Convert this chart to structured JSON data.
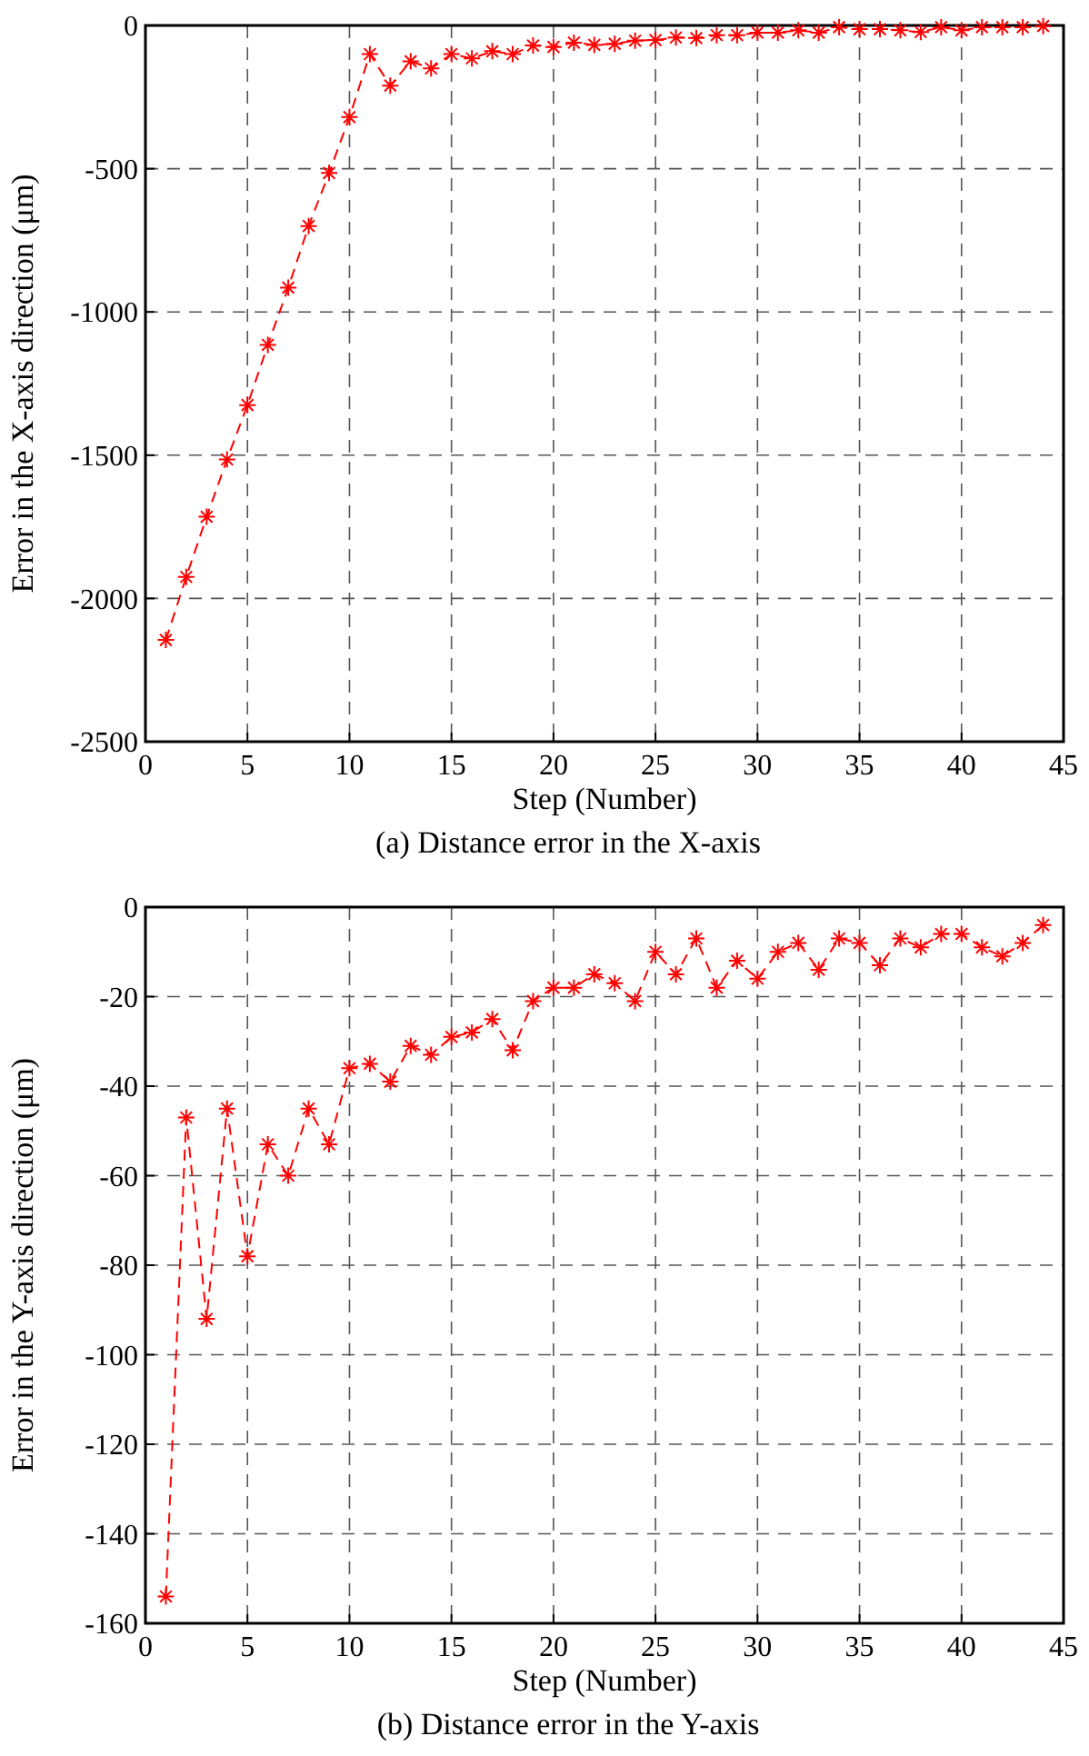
{
  "chart_data": [
    {
      "type": "line",
      "title": "(a) Distance error in the X-axis",
      "xlabel": "Step (Number)",
      "ylabel": "Error in the X-axis direction (μm)",
      "x": [
        1,
        2,
        3,
        4,
        5,
        6,
        7,
        8,
        9,
        10,
        11,
        12,
        13,
        14,
        15,
        16,
        17,
        18,
        19,
        20,
        21,
        22,
        23,
        24,
        25,
        26,
        27,
        28,
        29,
        30,
        31,
        32,
        33,
        34,
        35,
        36,
        37,
        38,
        39,
        40,
        41,
        42,
        43,
        44
      ],
      "series": [
        {
          "color": "#ff0000",
          "values": [
            -2145,
            -1925,
            -1715,
            -1515,
            -1325,
            -1115,
            -915,
            -700,
            -515,
            -320,
            -100,
            -210,
            -125,
            -150,
            -100,
            -115,
            -90,
            -100,
            -70,
            -75,
            -60,
            -68,
            -64,
            -53,
            -51,
            -42,
            -44,
            -34,
            -34,
            -25,
            -25,
            -17,
            -25,
            -6,
            -13,
            -13,
            -17,
            -23,
            -6,
            -17,
            -6,
            -6,
            -6,
            -2
          ]
        }
      ],
      "xlim": [
        0,
        45
      ],
      "xticks": [
        0,
        5,
        10,
        15,
        20,
        25,
        30,
        35,
        40,
        45
      ],
      "ylim": [
        -2500,
        0
      ],
      "yticks": [
        -2500,
        -2000,
        -1500,
        -1000,
        -500,
        0
      ],
      "grid": true,
      "marker": "cross",
      "line_style": "dashed"
    },
    {
      "type": "line",
      "title": "(b) Distance error in the Y-axis",
      "xlabel": "Step (Number)",
      "ylabel": "Error in the Y-axis direction (μm)",
      "x": [
        1,
        2,
        3,
        4,
        5,
        6,
        7,
        8,
        9,
        10,
        11,
        12,
        13,
        14,
        15,
        16,
        17,
        18,
        19,
        20,
        21,
        22,
        23,
        24,
        25,
        26,
        27,
        28,
        29,
        30,
        31,
        32,
        33,
        34,
        35,
        36,
        37,
        38,
        39,
        40,
        41,
        42,
        43,
        44
      ],
      "series": [
        {
          "color": "#ff0000",
          "values": [
            -154,
            -47,
            -92,
            -45,
            -78,
            -53,
            -60,
            -45,
            -53,
            -36,
            -35,
            -39,
            -31,
            -33,
            -29,
            -28,
            -25,
            -32,
            -21,
            -18,
            -18,
            -15,
            -17,
            -21,
            -10,
            -15,
            -7,
            -18,
            -12,
            -16,
            -10,
            -8,
            -14,
            -7,
            -8,
            -13,
            -7,
            -9,
            -6,
            -6,
            -9,
            -11,
            -8,
            -4
          ]
        }
      ],
      "xlim": [
        0,
        45
      ],
      "xticks": [
        0,
        5,
        10,
        15,
        20,
        25,
        30,
        35,
        40,
        45
      ],
      "ylim": [
        -160,
        0
      ],
      "yticks": [
        -160,
        -140,
        -120,
        -100,
        -80,
        -60,
        -40,
        -20,
        0
      ],
      "grid": true,
      "marker": "cross",
      "line_style": "dashed"
    }
  ]
}
